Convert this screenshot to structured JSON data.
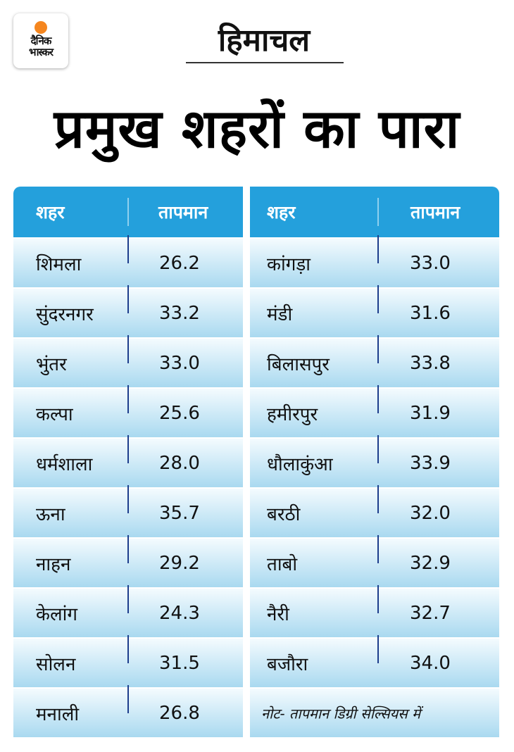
{
  "logo": {
    "line1": "दैनिक",
    "line2": "भास्कर",
    "brand_color": "#f5861f"
  },
  "region": "हिमाचल",
  "title": "प्रमुख शहरों का पारा",
  "table": {
    "header_color": "#24a0dc",
    "headers": {
      "city": "शहर",
      "temp": "तापमान"
    },
    "left": [
      {
        "city": "शिमला",
        "temp": "26.2"
      },
      {
        "city": "सुंदरनगर",
        "temp": "33.2"
      },
      {
        "city": "भुंतर",
        "temp": "33.0"
      },
      {
        "city": "कल्पा",
        "temp": "25.6"
      },
      {
        "city": "धर्मशाला",
        "temp": "28.0"
      },
      {
        "city": "ऊना",
        "temp": "35.7"
      },
      {
        "city": "नाहन",
        "temp": "29.2"
      },
      {
        "city": "केलांग",
        "temp": "24.3"
      },
      {
        "city": "सोलन",
        "temp": "31.5"
      },
      {
        "city": "मनाली",
        "temp": "26.8"
      }
    ],
    "right": [
      {
        "city": "कांगड़ा",
        "temp": "33.0"
      },
      {
        "city": "मंडी",
        "temp": "31.6"
      },
      {
        "city": "बिलासपुर",
        "temp": "33.8"
      },
      {
        "city": "हमीरपुर",
        "temp": "31.9"
      },
      {
        "city": "धौलाकुंआ",
        "temp": "33.9"
      },
      {
        "city": "बरठी",
        "temp": "32.0"
      },
      {
        "city": "ताबो",
        "temp": "32.9"
      },
      {
        "city": "नैरी",
        "temp": "32.7"
      },
      {
        "city": "बजौरा",
        "temp": "34.0"
      }
    ],
    "note": "नोट- तापमान डिग्री सेल्सियस में"
  }
}
